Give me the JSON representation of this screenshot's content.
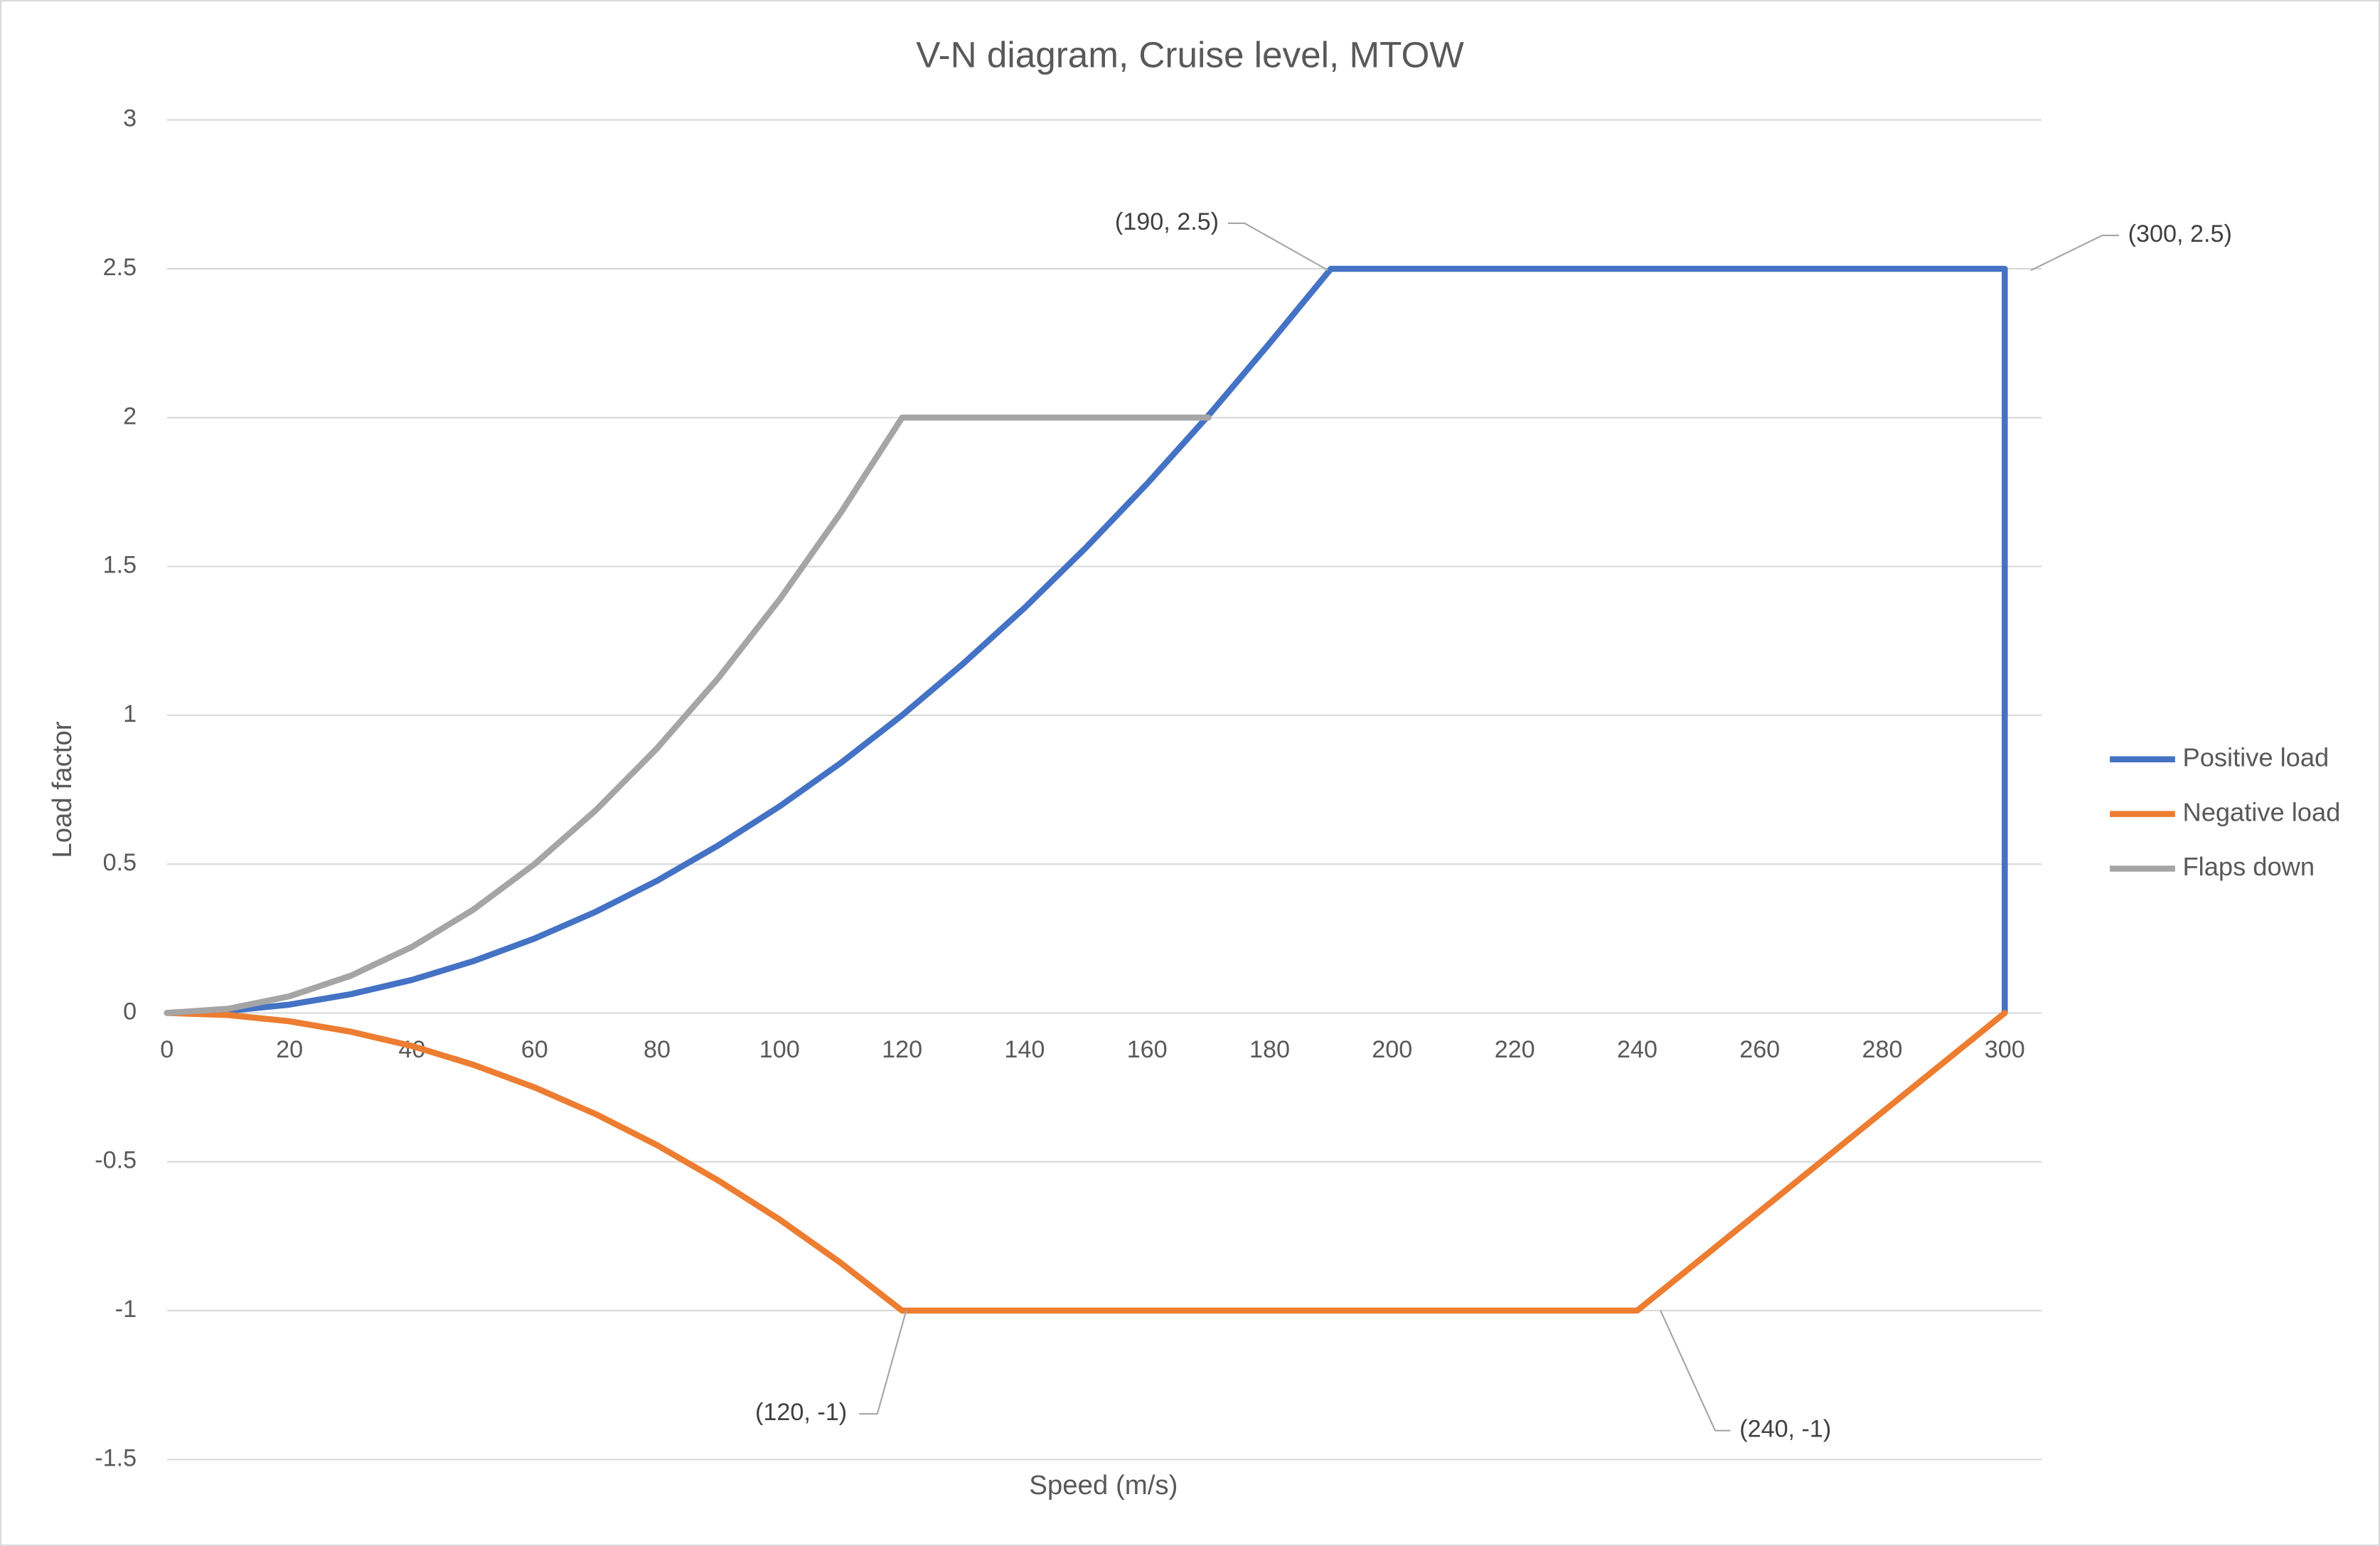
{
  "chart_data": {
    "type": "line",
    "title": "V-N diagram, Cruise level, MTOW",
    "x_label": "Speed (m/s)",
    "y_label": "Load factor",
    "xlim": [
      0,
      306
    ],
    "xticks": [
      0,
      20,
      40,
      60,
      80,
      100,
      120,
      140,
      160,
      180,
      200,
      220,
      240,
      260,
      280,
      300
    ],
    "ylim": [
      -1.5,
      3
    ],
    "yticks": [
      -1.5,
      -1,
      -0.5,
      0,
      0.5,
      1,
      1.5,
      2,
      2.5,
      3
    ],
    "grid": true,
    "legend": "right",
    "series": [
      {
        "name": "Positive load",
        "color": "#4472c4",
        "x": [
          0,
          10,
          20,
          30,
          40,
          50,
          60,
          70,
          80,
          90,
          100,
          110,
          120,
          130,
          140,
          150,
          160,
          170,
          180,
          190,
          300,
          300
        ],
        "values": [
          0,
          0.007,
          0.028,
          0.063,
          0.111,
          0.174,
          0.25,
          0.34,
          0.444,
          0.563,
          0.694,
          0.84,
          1,
          1.174,
          1.361,
          1.563,
          1.778,
          2.007,
          2.25,
          2.5,
          2.5,
          0
        ]
      },
      {
        "name": "Negative load",
        "color": "#ed7d31",
        "x": [
          0,
          10,
          20,
          30,
          40,
          50,
          60,
          70,
          80,
          90,
          100,
          110,
          120,
          240,
          300
        ],
        "values": [
          0,
          -0.007,
          -0.028,
          -0.063,
          -0.111,
          -0.174,
          -0.25,
          -0.34,
          -0.444,
          -0.563,
          -0.694,
          -0.84,
          -1,
          -1,
          0
        ]
      },
      {
        "name": "Flaps down",
        "color": "#a5a5a5",
        "x": [
          0,
          10,
          20,
          30,
          40,
          50,
          60,
          70,
          80,
          90,
          100,
          110,
          120,
          170
        ],
        "values": [
          0,
          0.014,
          0.056,
          0.125,
          0.222,
          0.347,
          0.5,
          0.681,
          0.889,
          1.125,
          1.389,
          1.681,
          2,
          2
        ]
      }
    ],
    "annotations": [
      "(190, 2.5)",
      "(300, 2.5)",
      "(120, -1)",
      "(240, -1)"
    ]
  }
}
